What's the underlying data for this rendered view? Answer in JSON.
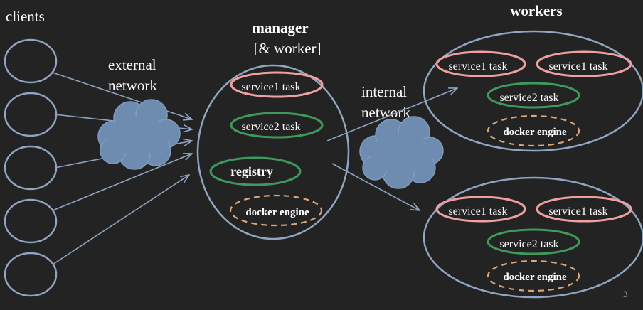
{
  "labels": {
    "clients": "clients",
    "external_network": [
      "external",
      "network"
    ],
    "manager_title": "manager",
    "manager_subtitle": "[& worker]",
    "internal_network": [
      "internal",
      "network"
    ],
    "workers_title": "workers"
  },
  "manager": {
    "tasks": [
      "service1 task",
      "service2 task"
    ],
    "registry": "registry",
    "engine": "docker engine"
  },
  "workers": [
    {
      "tasks": [
        "service1 task",
        "service1 task",
        "service2 task"
      ],
      "engine": "docker engine"
    },
    {
      "tasks": [
        "service1 task",
        "service1 task",
        "service2 task"
      ],
      "engine": "docker engine"
    }
  ],
  "page_number": "3",
  "colors": {
    "background": "#232323",
    "outline": "#8fa5c2",
    "service1": "#f0a0a0",
    "service2": "#3e9a5b",
    "engine": "#d9a77a",
    "cloud": "#6e8bb0",
    "arrow": "#8fa5c2"
  }
}
